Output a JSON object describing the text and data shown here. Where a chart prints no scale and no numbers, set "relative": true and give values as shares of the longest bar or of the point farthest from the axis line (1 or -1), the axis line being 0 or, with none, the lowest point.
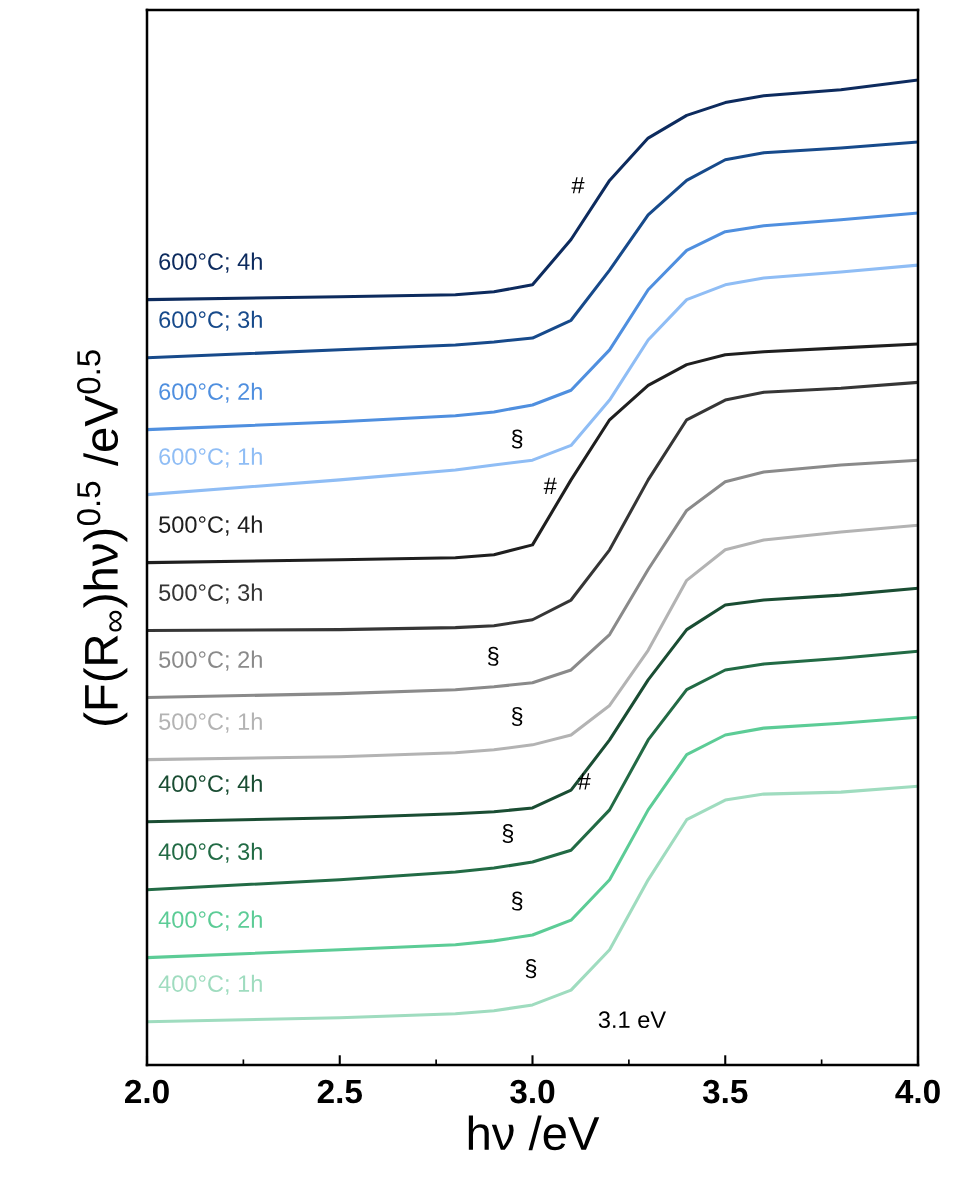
{
  "chart_data": {
    "type": "line",
    "relative": true,
    "xlabel": "hν /eV",
    "ylabel": "(F(R$_{∞}$)hν)$^{0.5}$ /eV$^{0.5}$",
    "x": [
      2.0,
      2.5,
      2.8,
      2.9,
      3.0,
      3.1,
      3.2,
      3.3,
      3.4,
      3.5,
      3.6,
      3.8,
      4.0
    ],
    "xlim": [
      2.0,
      4.0
    ],
    "xticks": [
      {
        "value": 2.0,
        "label": "2.0"
      },
      {
        "value": 2.5,
        "label": "2.5"
      },
      {
        "value": 3.0,
        "label": "3.0"
      },
      {
        "value": 3.5,
        "label": "3.5"
      },
      {
        "value": 4.0,
        "label": "4.0"
      }
    ],
    "grid": false,
    "legend": false,
    "marker": "none",
    "line_style": "solid",
    "series": [
      {
        "name": "600°C; 4h",
        "color": "#0d2b5e",
        "values": [
          0.777,
          0.78,
          0.782,
          0.785,
          0.792,
          0.838,
          0.898,
          0.941,
          0.964,
          0.977,
          0.984,
          0.99,
          1.0
        ]
      },
      {
        "name": "600°C; 3h",
        "color": "#174a8b",
        "values": [
          0.718,
          0.726,
          0.731,
          0.734,
          0.738,
          0.756,
          0.807,
          0.863,
          0.898,
          0.919,
          0.926,
          0.931,
          0.937
        ]
      },
      {
        "name": "600°C; 2h",
        "color": "#4f8fdf",
        "values": [
          0.645,
          0.653,
          0.659,
          0.663,
          0.67,
          0.685,
          0.726,
          0.787,
          0.827,
          0.846,
          0.852,
          0.858,
          0.865
        ]
      },
      {
        "name": "600°C; 1h",
        "color": "#8fbdf5",
        "values": [
          0.579,
          0.594,
          0.604,
          0.609,
          0.614,
          0.629,
          0.675,
          0.736,
          0.777,
          0.792,
          0.799,
          0.805,
          0.812
        ]
      },
      {
        "name": "500°C; 4h",
        "color": "#1f1f1f",
        "values": [
          0.51,
          0.513,
          0.515,
          0.518,
          0.528,
          0.594,
          0.655,
          0.69,
          0.711,
          0.721,
          0.724,
          0.728,
          0.732
        ]
      },
      {
        "name": "500°C; 3h",
        "color": "#363636",
        "values": [
          0.441,
          0.442,
          0.444,
          0.446,
          0.452,
          0.472,
          0.523,
          0.594,
          0.655,
          0.675,
          0.683,
          0.687,
          0.693
        ]
      },
      {
        "name": "500°C; 2h",
        "color": "#8a8a8a",
        "values": [
          0.373,
          0.377,
          0.381,
          0.384,
          0.388,
          0.401,
          0.437,
          0.503,
          0.563,
          0.592,
          0.602,
          0.609,
          0.614
        ]
      },
      {
        "name": "500°C; 1h",
        "color": "#b3b3b3",
        "values": [
          0.31,
          0.313,
          0.317,
          0.32,
          0.325,
          0.335,
          0.365,
          0.421,
          0.492,
          0.523,
          0.533,
          0.541,
          0.548
        ]
      },
      {
        "name": "400°C; 4h",
        "color": "#1a4d33",
        "values": [
          0.247,
          0.251,
          0.255,
          0.257,
          0.261,
          0.279,
          0.33,
          0.391,
          0.442,
          0.467,
          0.472,
          0.477,
          0.484
        ]
      },
      {
        "name": "400°C; 3h",
        "color": "#226b45",
        "values": [
          0.178,
          0.188,
          0.196,
          0.2,
          0.206,
          0.218,
          0.259,
          0.33,
          0.381,
          0.401,
          0.407,
          0.413,
          0.42
        ]
      },
      {
        "name": "400°C; 2h",
        "color": "#5ccc96",
        "values": [
          0.109,
          0.117,
          0.122,
          0.126,
          0.132,
          0.147,
          0.188,
          0.259,
          0.315,
          0.335,
          0.342,
          0.347,
          0.353
        ]
      },
      {
        "name": "400°C; 1h",
        "color": "#9fdcbf",
        "values": [
          0.044,
          0.048,
          0.052,
          0.055,
          0.061,
          0.076,
          0.117,
          0.188,
          0.249,
          0.269,
          0.275,
          0.277,
          0.283
        ]
      }
    ],
    "annotations": [
      "#",
      "§",
      "#",
      "§",
      "§",
      {
        "text": "#",
        "x": 3.134,
        "y": 0.286
      },
      "§",
      "§",
      "§",
      "3.1 eV"
    ]
  }
}
